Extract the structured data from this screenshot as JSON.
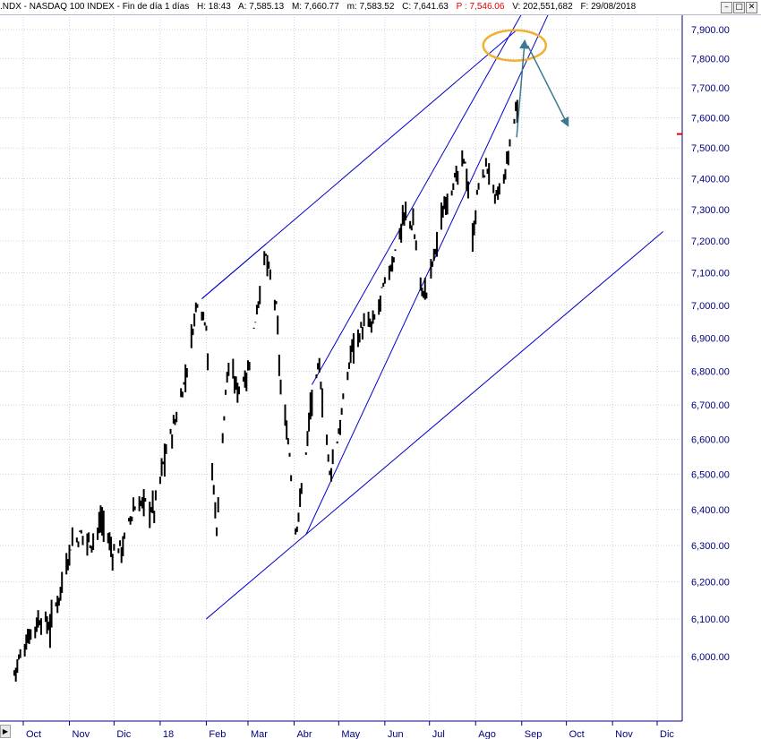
{
  "header": {
    "symbol": ".NDX - NASDAQ 100 INDEX - Fin de día 1 días",
    "h": "H: 18:43",
    "a": "A: 7,585.13",
    "m_upper": "M: 7,660.77",
    "m_lower": "m: 7,583.52",
    "c": "C: 7,641.63",
    "p": "P : 7,546.06",
    "v": "V: 202,551,682",
    "f": "F: 29/08/2018"
  },
  "window_buttons": [
    "–",
    "□",
    "✕"
  ],
  "scroll_left_icon": "triangle-right-icon",
  "colors": {
    "axis_text": "#000080",
    "trendline": "#0000cc",
    "price": "#000000",
    "highlight_ellipse": "#f0b030",
    "arrow": "#3a7a8a",
    "price_flag": "#e00000"
  },
  "chart_data": {
    "type": "ohlc",
    "title": ".NDX - NASDAQ 100 INDEX",
    "y_ticks": [
      "7,900.00",
      "7,800.00",
      "7,700.00",
      "7,600.00",
      "7,500.00",
      "7,400.00",
      "7,300.00",
      "7,200.00",
      "7,100.00",
      "7,000.00",
      "6,900.00",
      "6,800.00",
      "6,700.00",
      "6,600.00",
      "6,500.00",
      "6,400.00",
      "6,300.00",
      "6,200.00",
      "6,100.00",
      "6,000.00"
    ],
    "y_range": [
      5895,
      7955
    ],
    "y_scale": "log",
    "x_range": [
      "2017-09-25",
      "2018-12-31"
    ],
    "x_tick_dates": [
      "2017-10-01",
      "2017-11-01",
      "2017-12-01",
      "2018-01-01",
      "2018-02-01",
      "2018-03-01",
      "2018-04-01",
      "2018-05-01",
      "2018-06-01",
      "2018-07-01",
      "2018-08-01",
      "2018-09-01",
      "2018-10-01",
      "2018-11-01",
      "2018-12-01"
    ],
    "x_labels": [
      "Oct",
      "Nov",
      "Dic",
      "18",
      "Feb",
      "Mar",
      "Abr",
      "May",
      "Jun",
      "Jul",
      "Ago",
      "Sep",
      "Oct",
      "Nov",
      "Dic"
    ],
    "grid": true,
    "series_approx_close": [
      [
        "2017-09-25",
        5960
      ],
      [
        "2017-09-29",
        6000
      ],
      [
        "2017-10-05",
        6060
      ],
      [
        "2017-10-12",
        6100
      ],
      [
        "2017-10-19",
        6080
      ],
      [
        "2017-10-26",
        6180
      ],
      [
        "2017-11-02",
        6300
      ],
      [
        "2017-11-09",
        6330
      ],
      [
        "2017-11-16",
        6310
      ],
      [
        "2017-11-23",
        6370
      ],
      [
        "2017-11-30",
        6280
      ],
      [
        "2017-12-07",
        6300
      ],
      [
        "2017-12-14",
        6400
      ],
      [
        "2017-12-21",
        6420
      ],
      [
        "2017-12-28",
        6400
      ],
      [
        "2018-01-04",
        6550
      ],
      [
        "2018-01-11",
        6650
      ],
      [
        "2018-01-18",
        6780
      ],
      [
        "2018-01-26",
        7020
      ],
      [
        "2018-02-01",
        6950
      ],
      [
        "2018-02-05",
        6500
      ],
      [
        "2018-02-08",
        6350
      ],
      [
        "2018-02-15",
        6800
      ],
      [
        "2018-02-22",
        6750
      ],
      [
        "2018-03-01",
        6800
      ],
      [
        "2018-03-09",
        7050
      ],
      [
        "2018-03-13",
        7150
      ],
      [
        "2018-03-20",
        6990
      ],
      [
        "2018-03-23",
        6750
      ],
      [
        "2018-03-29",
        6560
      ],
      [
        "2018-04-02",
        6340
      ],
      [
        "2018-04-06",
        6450
      ],
      [
        "2018-04-12",
        6690
      ],
      [
        "2018-04-18",
        6810
      ],
      [
        "2018-04-25",
        6500
      ],
      [
        "2018-05-01",
        6620
      ],
      [
        "2018-05-04",
        6700
      ],
      [
        "2018-05-10",
        6880
      ],
      [
        "2018-05-17",
        6930
      ],
      [
        "2018-05-24",
        6940
      ],
      [
        "2018-05-31",
        7050
      ],
      [
        "2018-06-07",
        7150
      ],
      [
        "2018-06-14",
        7280
      ],
      [
        "2018-06-20",
        7250
      ],
      [
        "2018-06-26",
        7040
      ],
      [
        "2018-06-29",
        7040
      ],
      [
        "2018-07-06",
        7200
      ],
      [
        "2018-07-13",
        7350
      ],
      [
        "2018-07-19",
        7400
      ],
      [
        "2018-07-25",
        7460
      ],
      [
        "2018-07-30",
        7200
      ],
      [
        "2018-08-03",
        7380
      ],
      [
        "2018-08-09",
        7440
      ],
      [
        "2018-08-14",
        7330
      ],
      [
        "2018-08-20",
        7390
      ],
      [
        "2018-08-24",
        7510
      ],
      [
        "2018-08-29",
        7650
      ]
    ]
  }
}
